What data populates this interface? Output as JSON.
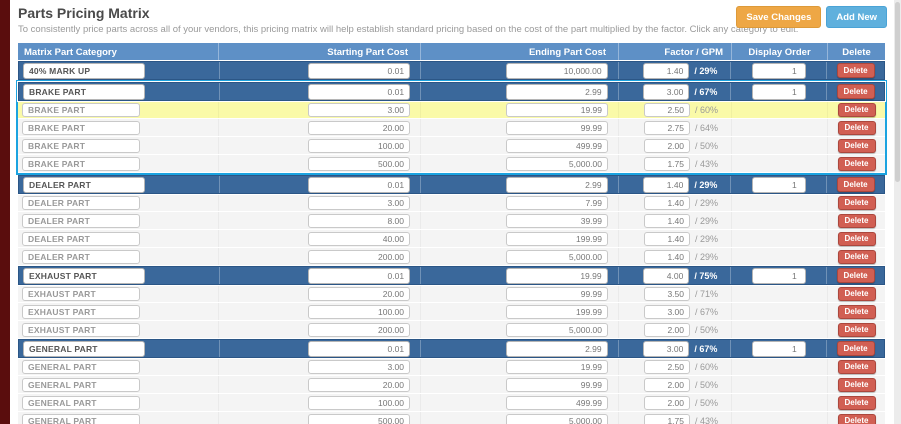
{
  "page": {
    "title": "Parts Pricing Matrix",
    "subtitle": "To consistently price parts across all of your vendors, this pricing matrix will help establish standard pricing based on the cost of the part multiplied by the factor. Click any category to edit.",
    "save_button": "Save Changes",
    "add_button": "Add New"
  },
  "colors": {
    "maroon": "#5a0d0d",
    "header-blue": "#5e90c6",
    "parent-blue": "#3a689b",
    "highlight-yellow": "#fafaa8",
    "select-cyan": "#1ba3e0",
    "delete-red": "#d15f53",
    "save-orange": "#eea745",
    "add-blue": "#5fb0dd"
  },
  "table": {
    "headers": [
      "Matrix Part Category",
      "Starting Part Cost",
      "Ending Part Cost",
      "Factor / GPM",
      "Display Order",
      "Delete"
    ],
    "delete_label": "Delete",
    "rows": [
      {
        "category": "40% MARK UP",
        "start": "0.01",
        "end": "10,000.00",
        "factor": "1.40",
        "gpm": "/ 29%",
        "order": "1",
        "type": "parent"
      },
      {
        "category": "BRAKE PART",
        "start": "0.01",
        "end": "2.99",
        "factor": "3.00",
        "gpm": "/ 67%",
        "order": "1",
        "type": "parent",
        "in_selected_group": true
      },
      {
        "category": "BRAKE PART",
        "start": "3.00",
        "end": "19.99",
        "factor": "2.50",
        "gpm": "/ 60%",
        "type": "child",
        "highlight": true,
        "in_selected_group": true
      },
      {
        "category": "BRAKE PART",
        "start": "20.00",
        "end": "99.99",
        "factor": "2.75",
        "gpm": "/ 64%",
        "type": "child",
        "in_selected_group": true
      },
      {
        "category": "BRAKE PART",
        "start": "100.00",
        "end": "499.99",
        "factor": "2.00",
        "gpm": "/ 50%",
        "type": "child",
        "in_selected_group": true
      },
      {
        "category": "BRAKE PART",
        "start": "500.00",
        "end": "5,000.00",
        "factor": "1.75",
        "gpm": "/ 43%",
        "type": "child",
        "in_selected_group": true
      },
      {
        "category": "DEALER PART",
        "start": "0.01",
        "end": "2.99",
        "factor": "1.40",
        "gpm": "/ 29%",
        "order": "1",
        "type": "parent"
      },
      {
        "category": "DEALER PART",
        "start": "3.00",
        "end": "7.99",
        "factor": "1.40",
        "gpm": "/ 29%",
        "type": "child"
      },
      {
        "category": "DEALER PART",
        "start": "8.00",
        "end": "39.99",
        "factor": "1.40",
        "gpm": "/ 29%",
        "type": "child"
      },
      {
        "category": "DEALER PART",
        "start": "40.00",
        "end": "199.99",
        "factor": "1.40",
        "gpm": "/ 29%",
        "type": "child"
      },
      {
        "category": "DEALER PART",
        "start": "200.00",
        "end": "5,000.00",
        "factor": "1.40",
        "gpm": "/ 29%",
        "type": "child"
      },
      {
        "category": "EXHAUST PART",
        "start": "0.01",
        "end": "19.99",
        "factor": "4.00",
        "gpm": "/ 75%",
        "order": "1",
        "type": "parent"
      },
      {
        "category": "EXHAUST PART",
        "start": "20.00",
        "end": "99.99",
        "factor": "3.50",
        "gpm": "/ 71%",
        "type": "child"
      },
      {
        "category": "EXHAUST PART",
        "start": "100.00",
        "end": "199.99",
        "factor": "3.00",
        "gpm": "/ 67%",
        "type": "child"
      },
      {
        "category": "EXHAUST PART",
        "start": "200.00",
        "end": "5,000.00",
        "factor": "2.00",
        "gpm": "/ 50%",
        "type": "child"
      },
      {
        "category": "GENERAL PART",
        "start": "0.01",
        "end": "2.99",
        "factor": "3.00",
        "gpm": "/ 67%",
        "order": "1",
        "type": "parent"
      },
      {
        "category": "GENERAL PART",
        "start": "3.00",
        "end": "19.99",
        "factor": "2.50",
        "gpm": "/ 60%",
        "type": "child"
      },
      {
        "category": "GENERAL PART",
        "start": "20.00",
        "end": "99.99",
        "factor": "2.00",
        "gpm": "/ 50%",
        "type": "child"
      },
      {
        "category": "GENERAL PART",
        "start": "100.00",
        "end": "499.99",
        "factor": "2.00",
        "gpm": "/ 50%",
        "type": "child"
      },
      {
        "category": "GENERAL PART",
        "start": "500.00",
        "end": "5,000.00",
        "factor": "1.75",
        "gpm": "/ 43%",
        "type": "child"
      }
    ]
  }
}
